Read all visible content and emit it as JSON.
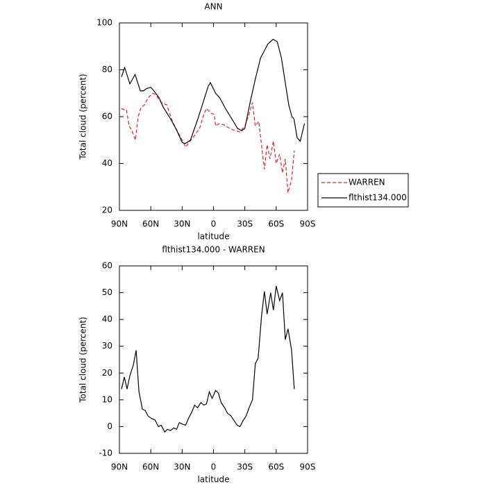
{
  "chart_data": [
    {
      "type": "line",
      "title": "ANN",
      "xlabel": "latitude",
      "ylabel": "Total cloud (percent)",
      "xlim": [
        90,
        -90
      ],
      "xticks": [
        {
          "value": 90,
          "label": "90N"
        },
        {
          "value": 60,
          "label": "60N"
        },
        {
          "value": 30,
          "label": "30N"
        },
        0,
        {
          "value": -30,
          "label": "30S"
        },
        {
          "value": -60,
          "label": "60S"
        },
        {
          "value": -90,
          "label": "90S"
        }
      ],
      "ylim": [
        20,
        100
      ],
      "yticks": [
        20,
        40,
        60,
        80,
        100
      ],
      "legend": "right",
      "series": [
        {
          "name": "WARREN",
          "color": "#e02020",
          "line_style": "dashed",
          "x": [
            88,
            86,
            83.3,
            80.7,
            78,
            74.7,
            72,
            69.3,
            66,
            62.7,
            58,
            54.7,
            50,
            44.7,
            39.3,
            34.7,
            30,
            26.7,
            23.3,
            18,
            13.3,
            10,
            6.7,
            2.7,
            -0.7,
            -2,
            -5.3,
            -10,
            -15.3,
            -20.7,
            -25.3,
            -30,
            -34,
            -37.3,
            -40,
            -43.3,
            -48.7,
            -51.3,
            -54,
            -57.3,
            -60,
            -63.3,
            -66,
            -68.7,
            -71.3,
            -74.7,
            -77.3
          ],
          "values": [
            63.5,
            63,
            63,
            56,
            54,
            50,
            60,
            64,
            65,
            68,
            70,
            69,
            66,
            65,
            58,
            54,
            50,
            47,
            49,
            52,
            55,
            60,
            63.5,
            61.5,
            61,
            56,
            57,
            56.5,
            55,
            54,
            53.5,
            56,
            61,
            66,
            56,
            58,
            37.5,
            48,
            42,
            49.5,
            40,
            44,
            36,
            42,
            27.5,
            33,
            45.5
          ]
        },
        {
          "name": "flthist134.000",
          "color": "#000000",
          "line_style": "solid",
          "x": [
            88,
            85,
            80,
            75,
            70,
            67,
            64,
            60,
            57,
            52,
            48,
            41,
            35,
            30,
            27,
            22,
            15,
            10,
            5,
            3,
            -2,
            -6,
            -12,
            -19,
            -23,
            -27,
            -30,
            -35,
            -40,
            -45,
            -52,
            -57,
            -61,
            -65,
            -72,
            -75,
            -77,
            -80,
            -83,
            -87
          ],
          "values": [
            77,
            81,
            74,
            78,
            71,
            71,
            72,
            72.5,
            71,
            68,
            64,
            59,
            54,
            49,
            48.5,
            50,
            59,
            66,
            73,
            74.5,
            70,
            68,
            63,
            58,
            55,
            54,
            55,
            66,
            76,
            85,
            91,
            93,
            92,
            85,
            65,
            60,
            59,
            51,
            49.5,
            57
          ]
        }
      ]
    },
    {
      "type": "line",
      "title": "flthist134.000 - WARREN",
      "xlabel": "latitude",
      "ylabel": "Total cloud (percent)",
      "xlim": [
        90,
        -90
      ],
      "xticks": [
        {
          "value": 90,
          "label": "90N"
        },
        {
          "value": 60,
          "label": "60N"
        },
        {
          "value": 30,
          "label": "30N"
        },
        0,
        {
          "value": -30,
          "label": "30S"
        },
        {
          "value": -60,
          "label": "60S"
        },
        {
          "value": -90,
          "label": "90S"
        }
      ],
      "ylim": [
        -10,
        60
      ],
      "yticks": [
        -10,
        0,
        10,
        20,
        30,
        40,
        50,
        60
      ],
      "series": [
        {
          "color": "#000000",
          "line_style": "solid",
          "x": [
            88,
            85.3,
            82.7,
            80,
            76.7,
            74,
            71.3,
            68,
            65.3,
            62.7,
            59.3,
            56,
            52.7,
            50,
            46.7,
            44,
            41.3,
            38,
            35.3,
            32.7,
            30,
            26.7,
            24,
            20.7,
            18,
            15.3,
            12,
            9.3,
            6.7,
            4,
            1.3,
            -2,
            -4.7,
            -7.3,
            -10.7,
            -13.3,
            -16.7,
            -20,
            -22.7,
            -25.3,
            -28.7,
            -31.3,
            -34,
            -37.3,
            -40,
            -42.7,
            -46,
            -48.7,
            -51.3,
            -54.7,
            -57.3,
            -60,
            -63.3,
            -66,
            -68.7,
            -71.3,
            -74.7,
            -77.3
          ],
          "values": [
            14,
            18.5,
            14,
            19,
            23,
            28.5,
            13,
            6.5,
            6,
            4,
            3,
            2.5,
            0,
            0.5,
            -2,
            -1,
            -1.5,
            -0.5,
            -1,
            1.5,
            1,
            0.5,
            3,
            5.5,
            8,
            7,
            9,
            8,
            8.5,
            13,
            10.5,
            13.5,
            12.5,
            9,
            7,
            5,
            4,
            2,
            0.5,
            0,
            2.5,
            4,
            7,
            10,
            23.5,
            25.5,
            41.5,
            50.5,
            42,
            50,
            43.5,
            52.5,
            47,
            50,
            32.5,
            36.5,
            28.5,
            14
          ]
        }
      ]
    }
  ]
}
